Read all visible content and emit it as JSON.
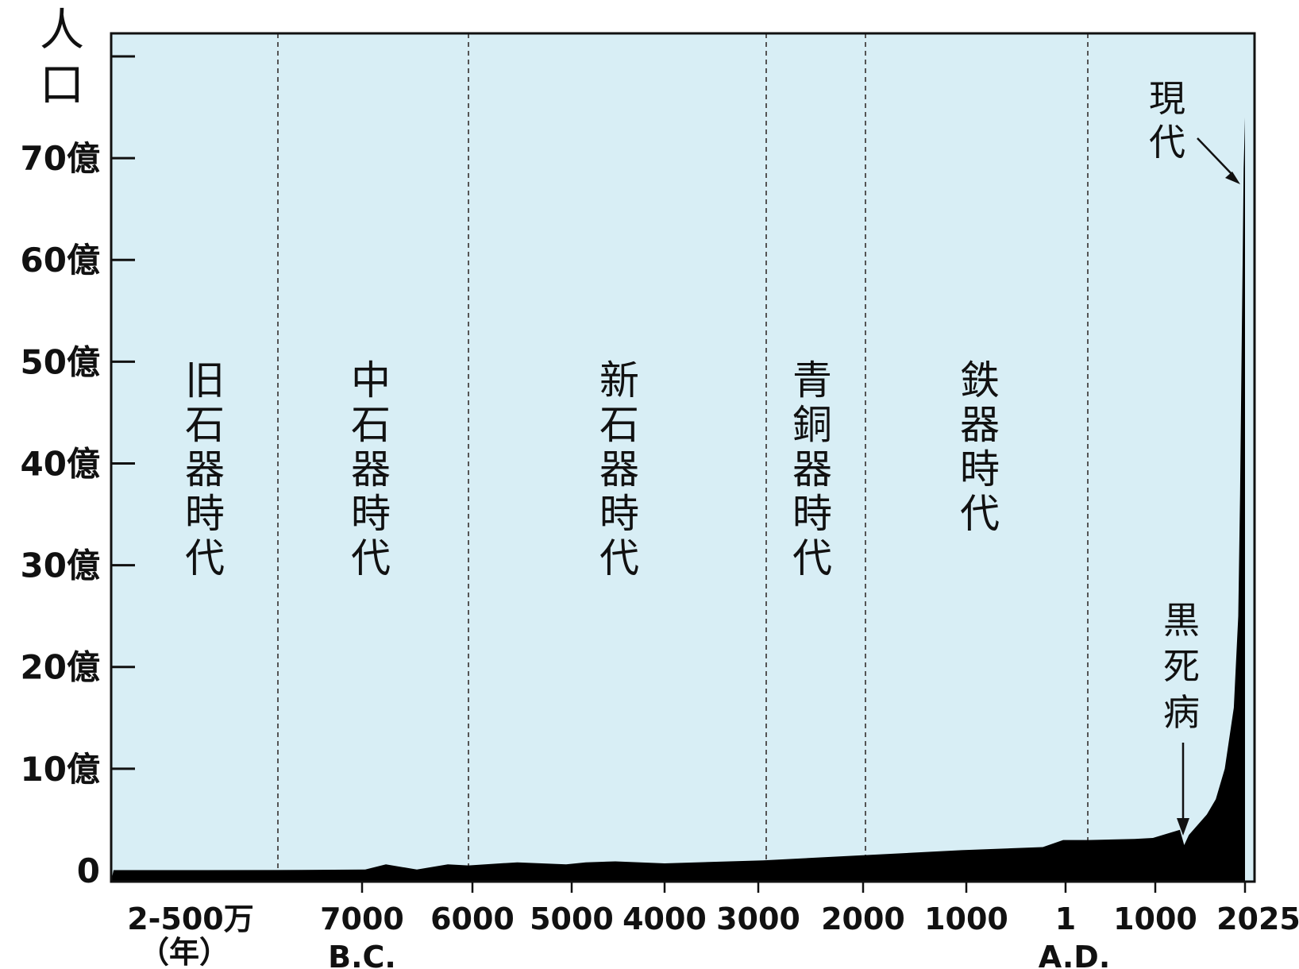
{
  "chart_data": {
    "type": "area",
    "y_axis_label": "人口",
    "ylim": [
      0,
      7800000000
    ],
    "y_ticks": [
      {
        "value": 0,
        "label": "0"
      },
      {
        "value": 1000000000,
        "label": "10億"
      },
      {
        "value": 2000000000,
        "label": "20億"
      },
      {
        "value": 3000000000,
        "label": "30億"
      },
      {
        "value": 4000000000,
        "label": "40億"
      },
      {
        "value": 5000000000,
        "label": "50億"
      },
      {
        "value": 6000000000,
        "label": "60億"
      },
      {
        "value": 7000000000,
        "label": "70億"
      }
    ],
    "x_ticks": [
      {
        "label": "2-500万",
        "sublabel": "（年）"
      },
      {
        "label": "7000"
      },
      {
        "label": "6000"
      },
      {
        "label": "5000"
      },
      {
        "label": "4000"
      },
      {
        "label": "3000"
      },
      {
        "label": "2000"
      },
      {
        "label": "1000"
      },
      {
        "label": "1"
      },
      {
        "label": "1000"
      },
      {
        "label": "2025"
      }
    ],
    "era_markers": [
      "B.C.",
      "A.D."
    ],
    "periods": [
      {
        "name": "旧石器時代"
      },
      {
        "name": "中石器時代"
      },
      {
        "name": "新石器時代"
      },
      {
        "name": "青銅器時代"
      },
      {
        "name": "鉄器時代"
      }
    ],
    "annotations": [
      {
        "text": "現代"
      },
      {
        "text": "黒死病"
      }
    ],
    "series": [
      {
        "x": [
          -9000,
          -8000,
          -7000,
          -6800,
          -6500,
          -6200,
          -6000,
          -5500,
          -5000,
          -4800,
          -4500,
          -4000,
          -3000,
          -2000,
          -1000,
          -200,
          0,
          300,
          800,
          1000,
          1300,
          1348,
          1400,
          1600,
          1700,
          1800,
          1900,
          1950,
          1970,
          1990,
          2000,
          2010,
          2025
        ],
        "values": [
          4000000,
          5000000,
          10000000,
          60000000,
          10000000,
          60000000,
          50000000,
          80000000,
          60000000,
          80000000,
          90000000,
          70000000,
          100000000,
          150000000,
          200000000,
          230000000,
          300000000,
          300000000,
          310000000,
          320000000,
          400000000,
          250000000,
          350000000,
          550000000,
          700000000,
          1000000000,
          1600000000,
          2500000000,
          3700000000,
          5300000000,
          6100000000,
          6900000000,
          7400000000
        ]
      }
    ],
    "grid": false
  },
  "colors": {
    "background": "#d8eef5",
    "fill": "#000000",
    "divider": "#555555"
  }
}
